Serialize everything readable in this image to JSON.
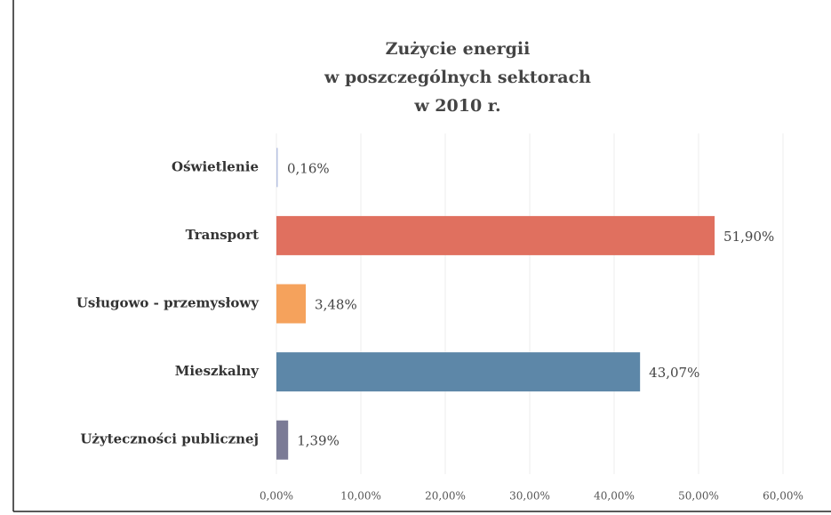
{
  "chart_data": {
    "type": "hbar",
    "title": [
      "Zużycie energii",
      "w poszczególnych sektorach",
      "w 2010 r."
    ],
    "categories": [
      "Oświetlenie",
      "Transport",
      "Usługowo - przemysłowy",
      "Mieszkalny",
      "Użyteczności publicznej"
    ],
    "values": [
      0.16,
      51.9,
      3.48,
      43.07,
      1.39
    ],
    "value_labels": [
      "0,16%",
      "51,90%",
      "3,48%",
      "43,07%",
      "1,39%"
    ],
    "colors": [
      "#b9c3e2",
      "#e0705f",
      "#f5a25c",
      "#5d87a8",
      "#7b7b96"
    ],
    "xlim": [
      0,
      60
    ],
    "xticks": [
      {
        "value": 0,
        "label": "0,00%"
      },
      {
        "value": 10,
        "label": "10,00%"
      },
      {
        "value": 20,
        "label": "20,00%"
      },
      {
        "value": 30,
        "label": "30,00%"
      },
      {
        "value": 40,
        "label": "40,00%"
      },
      {
        "value": 50,
        "label": "50,00%"
      },
      {
        "value": 60,
        "label": "60,00%"
      }
    ],
    "grid": true
  }
}
